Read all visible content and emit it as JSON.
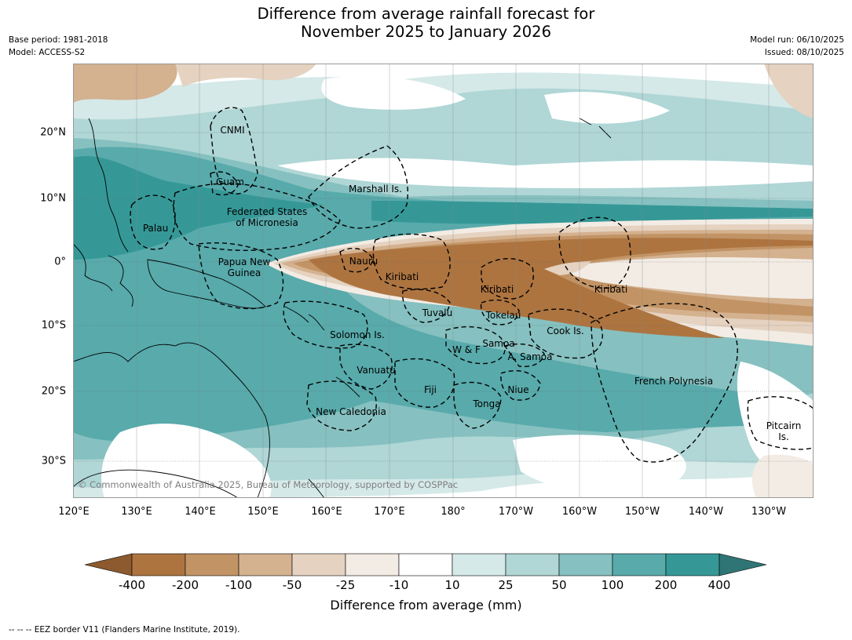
{
  "header": {
    "title_line1": "Difference from average rainfall forecast for",
    "title_line2": "November 2025 to January 2026",
    "base_period": "Base period: 1981-2018",
    "model": "Model: ACCESS-S2",
    "model_run": "Model run: 06/10/2025",
    "issued": "Issued: 08/10/2025"
  },
  "map": {
    "copyright": "© Commonwealth of Australia 2025, Bureau of Meteorology, supported by COSPPac",
    "lat_ticks": [
      "20°N",
      "10°N",
      "0°",
      "10°S",
      "20°S",
      "30°S"
    ],
    "lon_ticks": [
      "120°E",
      "130°E",
      "140°E",
      "150°E",
      "160°E",
      "170°E",
      "180°",
      "170°W",
      "160°W",
      "150°W",
      "140°W",
      "130°W"
    ],
    "labels": {
      "cnmi": "CNMI",
      "guam": "Guam",
      "marshall": "Marshall Is.",
      "fsm_line1": "Federated States",
      "fsm_line2": "of Micronesia",
      "palau": "Palau",
      "png_line1": "Papua New",
      "png_line2": "Guinea",
      "nauru": "Nauru",
      "kiribati_west": "Kiribati",
      "kiribati_central": "Kiribati",
      "kiribati_east": "Kiribati",
      "tuvalu": "Tuvalu",
      "tokelau": "Tokelau",
      "cook": "Cook Is.",
      "solomon": "Solomon Is.",
      "wallis": "W & F",
      "samoa": "Samoa",
      "american_samoa": "A. Samoa",
      "vanuatu": "Vanuatu",
      "fiji": "Fiji",
      "niue": "Niue",
      "tonga": "Tonga",
      "new_caledonia": "New Caledonia",
      "french_polynesia": "French Polynesia",
      "pitcairn_line1": "Pitcairn",
      "pitcairn_line2": "Is."
    }
  },
  "colorbar": {
    "label": "Difference from average (mm)",
    "ticks": [
      "-400",
      "-200",
      "-100",
      "-50",
      "-25",
      "-10",
      "10",
      "25",
      "50",
      "100",
      "200",
      "400"
    ],
    "colors": {
      "below_400": "#8c5a2e",
      "m400_m200": "#ad7440",
      "m200_m100": "#c29364",
      "m100_m50": "#d4b18f",
      "m50_m25": "#e5d2c0",
      "m25_m10": "#f2ece4",
      "m10_10": "#ffffff",
      "p10_25": "#d5e9e8",
      "p25_50": "#b0d6d6",
      "p50_100": "#86c0c0",
      "p100_200": "#58aaab",
      "p200_400": "#359897",
      "above_400": "#2f7575"
    }
  },
  "footnote": "--  --  -- EEZ border V11 (Flanders Marine Institute, 2019)."
}
